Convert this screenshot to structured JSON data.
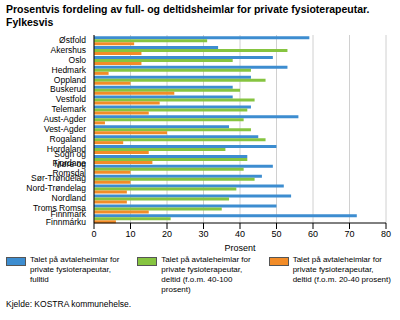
{
  "chart_data": {
    "type": "bar",
    "orientation": "horizontal",
    "title": "Prosentvis fordeling av full- og deltidsheimlar for private fysioterapeutar. Fylkesvis",
    "x_label": "Prosent",
    "source": "Kjelde: KOSTRA kommunehelse.",
    "categories": [
      "Østfold",
      "Akershus",
      "Oslo",
      "Hedmark",
      "Oppland",
      "Buskerud",
      "Vestfold",
      "Telemark",
      "Aust-Agder",
      "Vest-Agder",
      "Rogaland",
      "Hordaland",
      "Sogn og Fjordane",
      "Møre og Romsdal",
      "Sør-Trøndelag",
      "Nord-Trøndelag",
      "Nordland",
      "Troms Romsa",
      "Finnmark Finnmárku"
    ],
    "series": [
      {
        "name": "Talet på avtaleheimlar for private fysioterapeutar, fulltid",
        "color": "#3d8dd0",
        "values": [
          59,
          34,
          49,
          53,
          43,
          38,
          38,
          43,
          56,
          37,
          45,
          50,
          42,
          49,
          46,
          52,
          54,
          50,
          72
        ]
      },
      {
        "name": "Talet på avtaleheimlar for private fysioterapeutar, deltid (f.o.m. 40-100 prosent)",
        "color": "#86c440",
        "values": [
          31,
          53,
          38,
          43,
          47,
          40,
          44,
          42,
          41,
          43,
          47,
          36,
          42,
          41,
          44,
          39,
          37,
          35,
          21
        ]
      },
      {
        "name": "Talet på avtaleheimlar for private fysioterapeutar, deltid (f.o.m. 20-40 prosent)",
        "color": "#f28c28",
        "values": [
          11,
          13,
          13,
          4,
          10,
          22,
          18,
          15,
          3,
          20,
          8,
          15,
          16,
          10,
          10,
          9,
          9,
          15,
          6
        ]
      }
    ],
    "xlim": [
      0,
      80
    ],
    "xticks": [
      0,
      10,
      20,
      30,
      40,
      50,
      60,
      70,
      80
    ],
    "grid": true,
    "legend": "bottom"
  }
}
